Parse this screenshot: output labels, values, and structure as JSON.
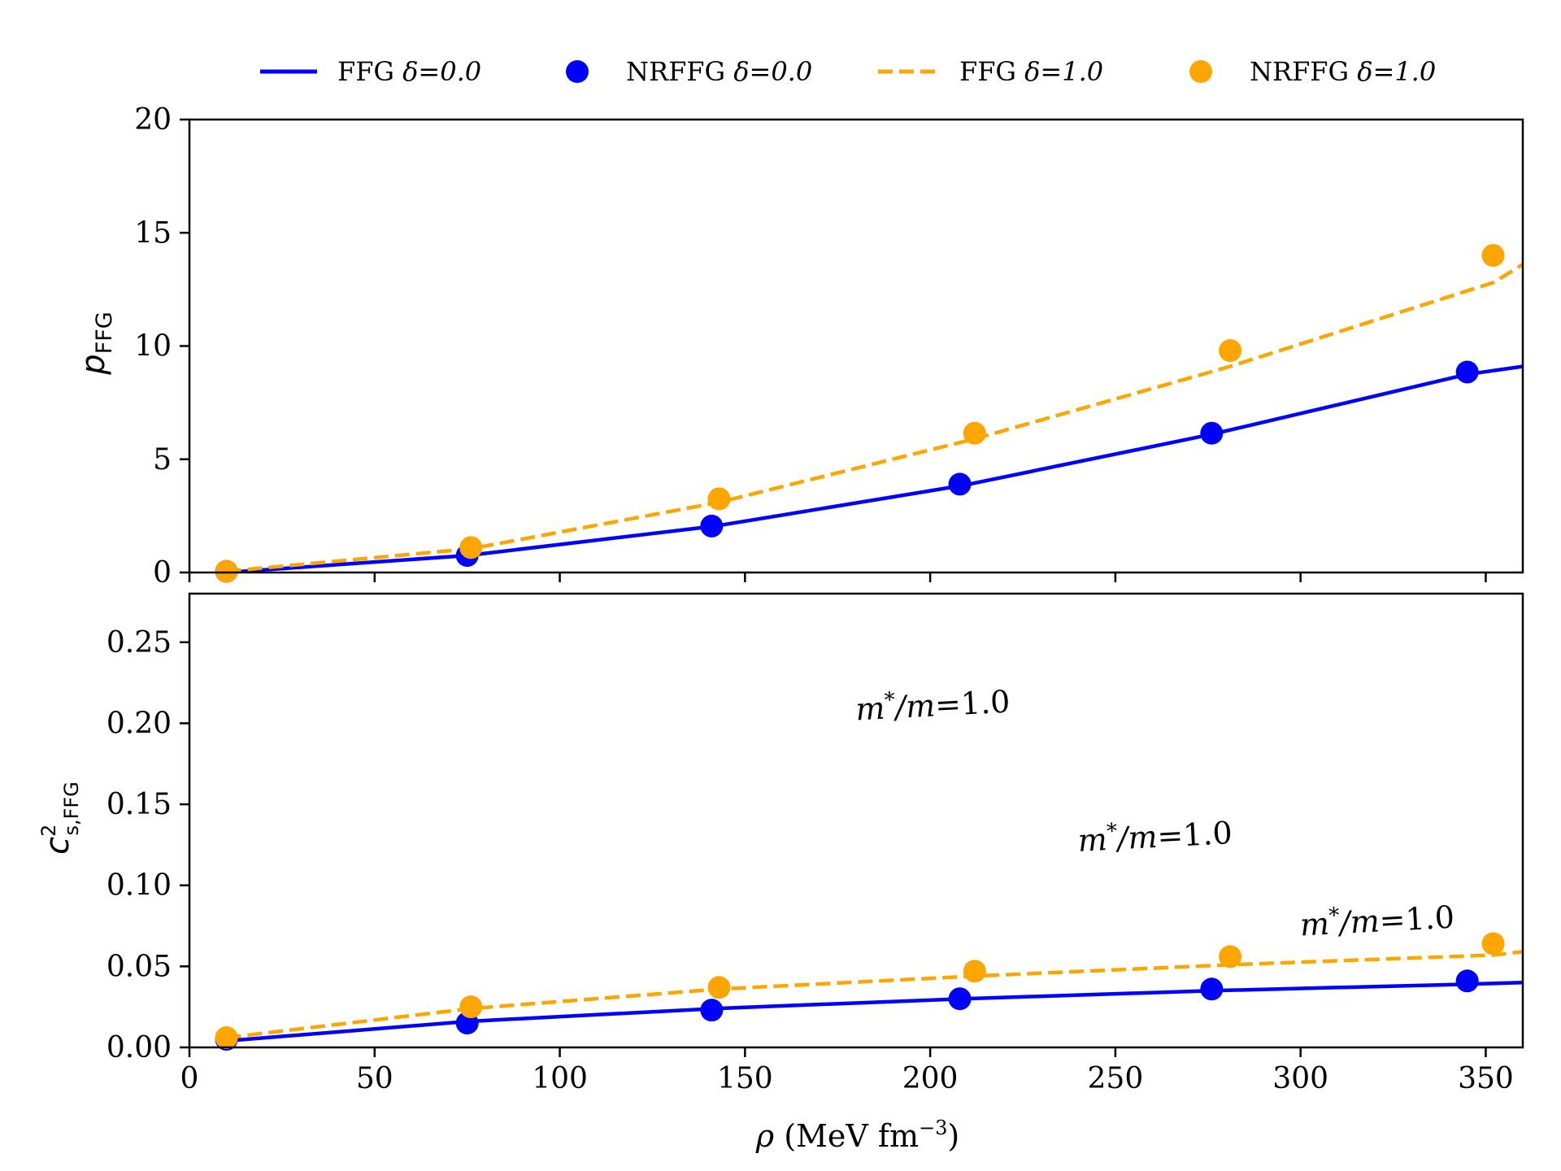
{
  "colors": {
    "blue": "#0000ff",
    "orange": "#ffa500",
    "axis": "#000000"
  },
  "legend": {
    "placement": "top",
    "items": [
      {
        "label": "FFG",
        "delta": "δ=0.0",
        "series": "ffg0",
        "style": "solid-line",
        "color": "#0000ff"
      },
      {
        "label": "NRFFG",
        "delta": "δ=0.0",
        "series": "nr0",
        "style": "marker",
        "color": "#0000ff"
      },
      {
        "label": "FFG",
        "delta": "δ=1.0",
        "series": "ffg1",
        "style": "dashed-line",
        "color": "#ffa500"
      },
      {
        "label": "NRFFG",
        "delta": "δ=1.0",
        "series": "nr1",
        "style": "marker",
        "color": "#ffa500"
      }
    ]
  },
  "chart_data": [
    {
      "type": "line",
      "panel": "top",
      "ylabel_main": "p",
      "ylabel_sub": "FFG",
      "xlim": [
        0,
        360
      ],
      "ylim": [
        0,
        20
      ],
      "yticks": [
        "0",
        "5",
        "10",
        "15",
        "20"
      ],
      "grid": false,
      "series": [
        {
          "name": "FFG δ=0.0",
          "kind": "line",
          "dash": "solid",
          "color": "#0000ff",
          "x": [
            10,
            75,
            142,
            209,
            276,
            345,
            360
          ],
          "y": [
            0.0,
            0.75,
            2.05,
            3.85,
            6.1,
            8.75,
            9.1
          ]
        },
        {
          "name": "NRFFG δ=0.0",
          "kind": "scatter",
          "color": "#0000ff",
          "x": [
            10,
            75,
            141,
            208,
            276,
            345
          ],
          "y": [
            0.05,
            0.75,
            2.05,
            3.9,
            6.15,
            8.85
          ]
        },
        {
          "name": "FFG δ=1.0",
          "kind": "line",
          "dash": "dashed",
          "color": "#ffa500",
          "x": [
            10,
            76,
            143,
            212,
            281,
            352,
            360
          ],
          "y": [
            0.05,
            1.05,
            3.1,
            5.9,
            9.1,
            12.8,
            13.6
          ]
        },
        {
          "name": "NRFFG δ=1.0",
          "kind": "scatter",
          "color": "#ffa500",
          "x": [
            10,
            76,
            143,
            212,
            281,
            352
          ],
          "y": [
            0.05,
            1.1,
            3.25,
            6.15,
            9.8,
            14.0
          ]
        }
      ]
    },
    {
      "type": "line",
      "panel": "bottom",
      "ylabel_main": "c",
      "ylabel_sup": "2",
      "ylabel_sub": "s,FFG",
      "xlabel_sym": "ρ",
      "xlabel_unit": "(MeV fm",
      "xlabel_exp": "−3",
      "xlabel_close": ")",
      "xlim": [
        0,
        360
      ],
      "ylim": [
        0,
        0.28
      ],
      "xticks": [
        "0",
        "50",
        "100",
        "150",
        "200",
        "250",
        "300",
        "350"
      ],
      "yticks": [
        "0.00",
        "0.05",
        "0.10",
        "0.15",
        "0.20",
        "0.25"
      ],
      "grid": false,
      "annotations": [
        {
          "text": "m*/m=1.0",
          "x": 180,
          "y": 0.202
        },
        {
          "text": "m*/m=1.0",
          "x": 240,
          "y": 0.121
        },
        {
          "text": "m*/m=1.0",
          "x": 300,
          "y": 0.069
        }
      ],
      "series": [
        {
          "name": "FFG δ=0.0",
          "kind": "line",
          "dash": "solid",
          "color": "#0000ff",
          "x": [
            10,
            75,
            142,
            209,
            276,
            345,
            360
          ],
          "y": [
            0.004,
            0.016,
            0.024,
            0.03,
            0.035,
            0.039,
            0.04
          ]
        },
        {
          "name": "NRFFG δ=0.0",
          "kind": "scatter",
          "color": "#0000ff",
          "x": [
            10,
            75,
            141,
            208,
            276,
            345
          ],
          "y": [
            0.005,
            0.015,
            0.023,
            0.03,
            0.036,
            0.041
          ]
        },
        {
          "name": "FFG δ=1.0",
          "kind": "line",
          "dash": "dashed",
          "color": "#ffa500",
          "x": [
            10,
            76,
            143,
            212,
            281,
            352,
            360
          ],
          "y": [
            0.006,
            0.024,
            0.036,
            0.044,
            0.051,
            0.057,
            0.059
          ]
        },
        {
          "name": "NRFFG δ=1.0",
          "kind": "scatter",
          "color": "#ffa500",
          "x": [
            10,
            76,
            143,
            212,
            281,
            352
          ],
          "y": [
            0.006,
            0.025,
            0.037,
            0.047,
            0.056,
            0.064
          ]
        }
      ]
    }
  ]
}
